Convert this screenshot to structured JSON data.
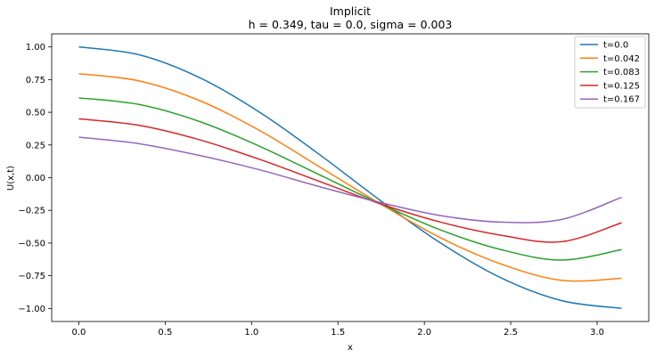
{
  "chart_data": {
    "type": "line",
    "title": "Implicit",
    "subtitle": "h = 0.349, tau = 0.0, sigma = 0.003",
    "xlabel": "x",
    "ylabel": "U(x,t)",
    "xlim": [
      -0.157,
      3.299
    ],
    "ylim": [
      -1.1,
      1.1
    ],
    "xticks": [
      0.0,
      0.5,
      1.0,
      1.5,
      2.0,
      2.5,
      3.0
    ],
    "xtick_labels": [
      "0.0",
      "0.5",
      "1.0",
      "1.5",
      "2.0",
      "2.5",
      "3.0"
    ],
    "yticks": [
      1.0,
      0.75,
      0.5,
      0.25,
      0.0,
      -0.25,
      -0.5,
      -0.75,
      -1.0
    ],
    "ytick_labels": [
      "1.00",
      "0.75",
      "0.50",
      "0.25",
      "0.00",
      "−0.25",
      "−0.50",
      "−0.75",
      "−1.00"
    ],
    "grid": false,
    "legend_position": "top-right",
    "x": [
      0.0,
      0.349,
      0.698,
      1.047,
      1.396,
      1.745,
      2.094,
      2.443,
      2.793,
      3.142
    ],
    "series": [
      {
        "name": "t=0.0",
        "color": "#1f77b4",
        "values": [
          1.0,
          0.94,
          0.766,
          0.5,
          0.174,
          -0.174,
          -0.5,
          -0.766,
          -0.94,
          -1.0
        ]
      },
      {
        "name": "t=0.042",
        "color": "#ff7f0e",
        "values": [
          0.795,
          0.74,
          0.59,
          0.36,
          0.08,
          -0.2,
          -0.46,
          -0.66,
          -0.785,
          -0.77
        ]
      },
      {
        "name": "t=0.083",
        "color": "#2ca02c",
        "values": [
          0.61,
          0.56,
          0.43,
          0.24,
          0.02,
          -0.2,
          -0.4,
          -0.55,
          -0.63,
          -0.55
        ]
      },
      {
        "name": "t=0.125",
        "color": "#d62728",
        "values": [
          0.45,
          0.4,
          0.29,
          0.14,
          -0.03,
          -0.2,
          -0.34,
          -0.44,
          -0.49,
          -0.345
        ]
      },
      {
        "name": "t=0.167",
        "color": "#9467bd",
        "values": [
          0.31,
          0.26,
          0.17,
          0.06,
          -0.07,
          -0.19,
          -0.29,
          -0.34,
          -0.32,
          -0.15
        ]
      }
    ]
  }
}
